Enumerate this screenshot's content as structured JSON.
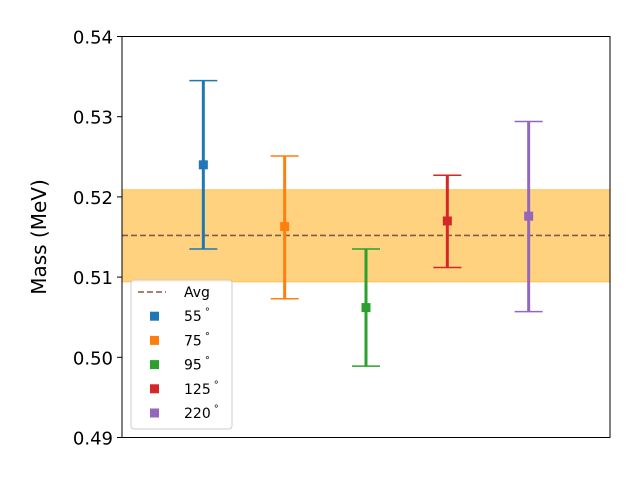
{
  "chart_data": {
    "type": "scatter",
    "title": "",
    "xlabel": "",
    "ylabel": "Mass (MeV)",
    "ylim": [
      0.49,
      0.54
    ],
    "yticks": [
      "0.49",
      "0.50",
      "0.51",
      "0.52",
      "0.53",
      "0.54"
    ],
    "grid": false,
    "legend_position": "lower-left",
    "average": {
      "name": "Avg",
      "value": 0.5152,
      "band": [
        0.5094,
        0.5209
      ],
      "line_color": "#8c564b",
      "band_color": "#ffa500"
    },
    "series": [
      {
        "name": "55$^\\circ$",
        "label_main": "55",
        "label_sup": "°",
        "value": 0.524,
        "lower": 0.5135,
        "upper": 0.5345,
        "color": "#1f77b4"
      },
      {
        "name": "75$^\\circ$",
        "label_main": "75",
        "label_sup": "°",
        "value": 0.5163,
        "lower": 0.5073,
        "upper": 0.5251,
        "color": "#ff7f0e"
      },
      {
        "name": "95$^\\circ$",
        "label_main": "95",
        "label_sup": "°",
        "value": 0.5062,
        "lower": 0.4989,
        "upper": 0.5135,
        "color": "#2ca02c"
      },
      {
        "name": "125$^\\circ$",
        "label_main": "125",
        "label_sup": "°",
        "value": 0.517,
        "lower": 0.5112,
        "upper": 0.5227,
        "color": "#d62728"
      },
      {
        "name": "220$^\\circ$",
        "label_main": "220",
        "label_sup": "°",
        "value": 0.5176,
        "lower": 0.5057,
        "upper": 0.5294,
        "color": "#9467bd"
      }
    ]
  }
}
